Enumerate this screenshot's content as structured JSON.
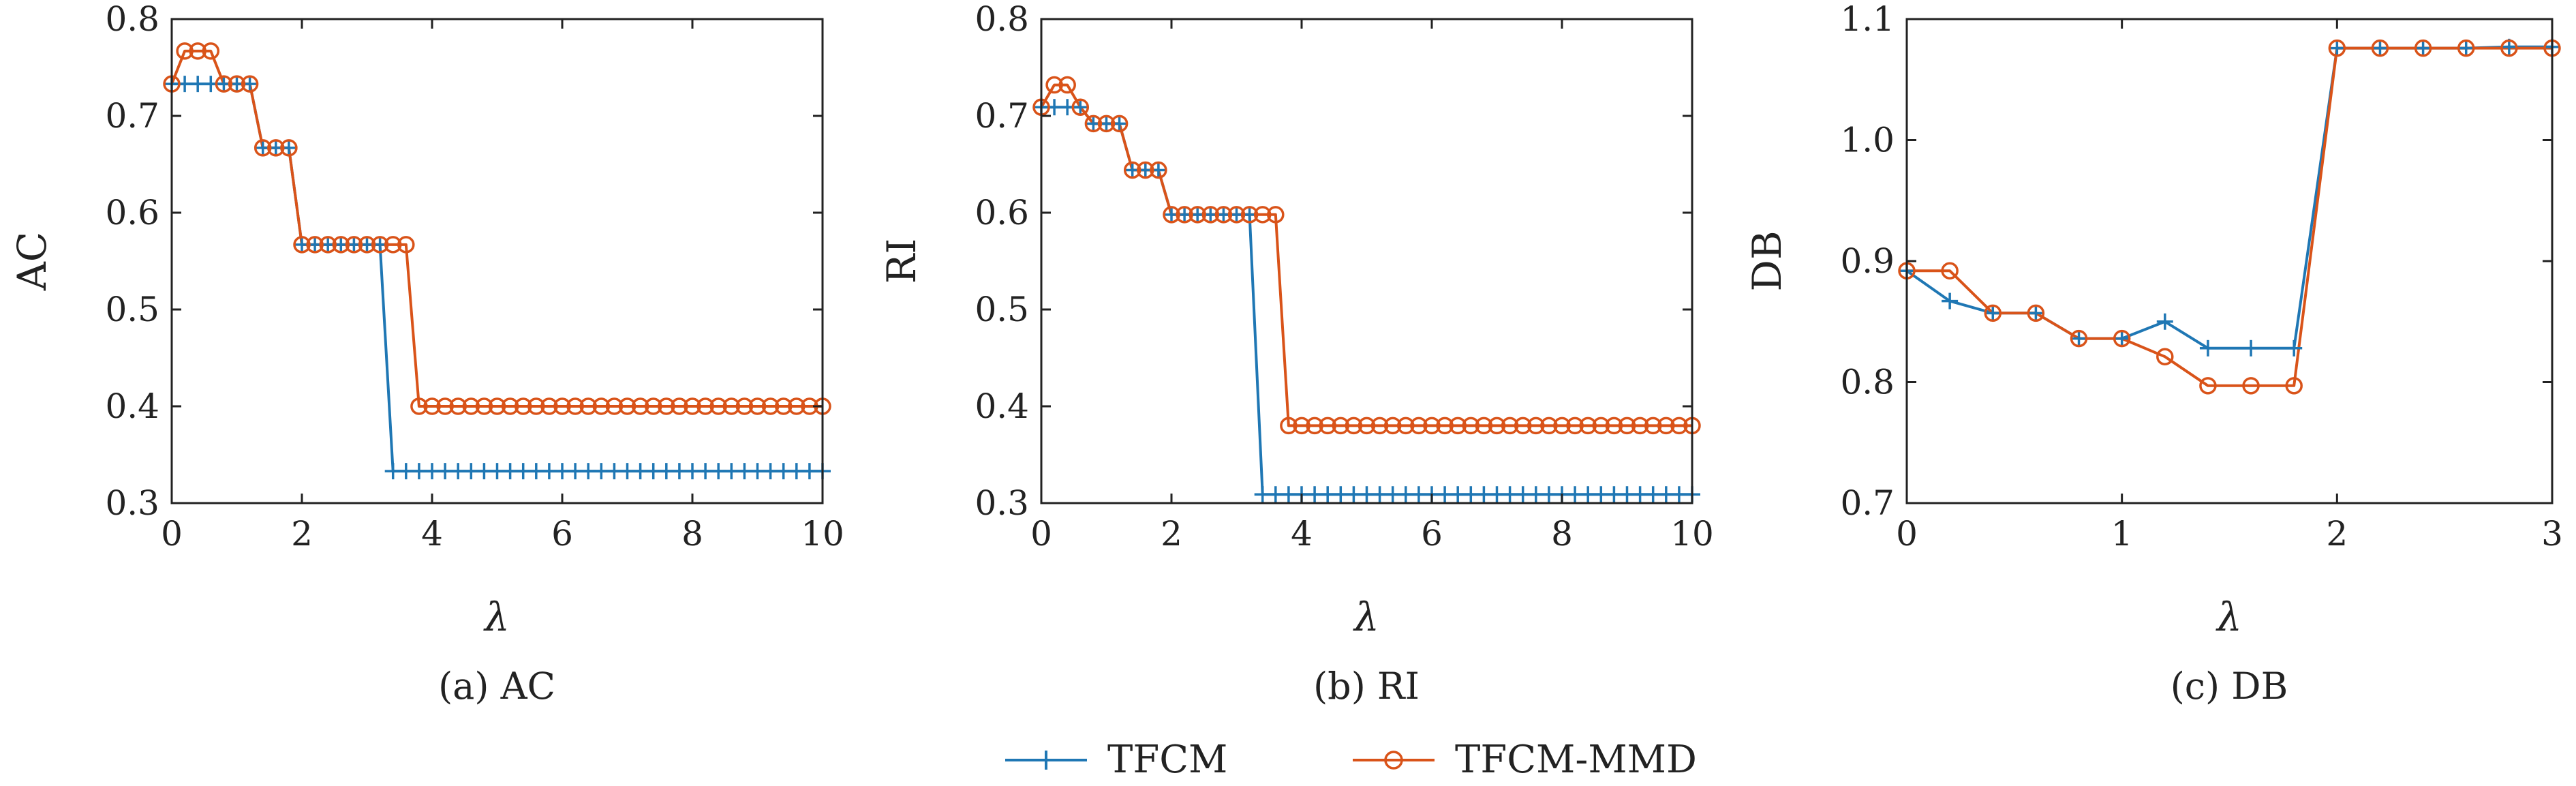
{
  "colors": {
    "tfcm": "#1f77b4",
    "tfcm_mmd": "#d95319",
    "axis": "#222222"
  },
  "legend": {
    "placement": "bottom-center",
    "items": [
      {
        "label": "TFCM",
        "marker": "plus"
      },
      {
        "label": "TFCM-MMD",
        "marker": "circle"
      }
    ]
  },
  "chart_data": [
    {
      "type": "line",
      "caption": "(a) AC",
      "xlabel": "λ",
      "ylabel": "AC",
      "xlim": [
        0,
        10
      ],
      "ylim": [
        0.3,
        0.8
      ],
      "xticks": [
        0,
        2,
        4,
        6,
        8,
        10
      ],
      "xtick_labels": [
        "0",
        "2",
        "4",
        "6",
        "8",
        "10"
      ],
      "yticks": [
        0.3,
        0.4,
        0.5,
        0.6,
        0.7,
        0.8
      ],
      "ytick_labels": [
        "0.3",
        "0.4",
        "0.5",
        "0.6",
        "0.7",
        "0.8"
      ],
      "grid": false,
      "x": [
        0,
        0.2,
        0.4,
        0.6,
        0.8,
        1.0,
        1.2,
        1.4,
        1.6,
        1.8,
        2.0,
        2.2,
        2.4,
        2.6,
        2.8,
        3.0,
        3.2,
        3.4,
        3.6,
        3.8,
        4.0,
        4.2,
        4.4,
        4.6,
        4.8,
        5.0,
        5.2,
        5.4,
        5.6,
        5.8,
        6.0,
        6.2,
        6.4,
        6.6,
        6.8,
        7.0,
        7.2,
        7.4,
        7.6,
        7.8,
        8.0,
        8.2,
        8.4,
        8.6,
        8.8,
        9.0,
        9.2,
        9.4,
        9.6,
        9.8,
        10.0
      ],
      "series": [
        {
          "name": "TFCM",
          "values": [
            0.733,
            0.733,
            0.733,
            0.733,
            0.733,
            0.733,
            0.733,
            0.667,
            0.667,
            0.667,
            0.567,
            0.567,
            0.567,
            0.567,
            0.567,
            0.567,
            0.567,
            0.333,
            0.333,
            0.333,
            0.333,
            0.333,
            0.333,
            0.333,
            0.333,
            0.333,
            0.333,
            0.333,
            0.333,
            0.333,
            0.333,
            0.333,
            0.333,
            0.333,
            0.333,
            0.333,
            0.333,
            0.333,
            0.333,
            0.333,
            0.333,
            0.333,
            0.333,
            0.333,
            0.333,
            0.333,
            0.333,
            0.333,
            0.333,
            0.333,
            0.333
          ]
        },
        {
          "name": "TFCM-MMD",
          "values": [
            0.733,
            0.767,
            0.767,
            0.767,
            0.733,
            0.733,
            0.733,
            0.667,
            0.667,
            0.667,
            0.567,
            0.567,
            0.567,
            0.567,
            0.567,
            0.567,
            0.567,
            0.567,
            0.567,
            0.4,
            0.4,
            0.4,
            0.4,
            0.4,
            0.4,
            0.4,
            0.4,
            0.4,
            0.4,
            0.4,
            0.4,
            0.4,
            0.4,
            0.4,
            0.4,
            0.4,
            0.4,
            0.4,
            0.4,
            0.4,
            0.4,
            0.4,
            0.4,
            0.4,
            0.4,
            0.4,
            0.4,
            0.4,
            0.4,
            0.4,
            0.4
          ]
        }
      ]
    },
    {
      "type": "line",
      "caption": "(b) RI",
      "xlabel": "λ",
      "ylabel": "RI",
      "xlim": [
        0,
        10
      ],
      "ylim": [
        0.3,
        0.8
      ],
      "xticks": [
        0,
        2,
        4,
        6,
        8,
        10
      ],
      "xtick_labels": [
        "0",
        "2",
        "4",
        "6",
        "8",
        "10"
      ],
      "yticks": [
        0.3,
        0.4,
        0.5,
        0.6,
        0.7,
        0.8
      ],
      "ytick_labels": [
        "0.3",
        "0.4",
        "0.5",
        "0.6",
        "0.7",
        "0.8"
      ],
      "grid": false,
      "x": [
        0,
        0.2,
        0.4,
        0.6,
        0.8,
        1.0,
        1.2,
        1.4,
        1.6,
        1.8,
        2.0,
        2.2,
        2.4,
        2.6,
        2.8,
        3.0,
        3.2,
        3.4,
        3.6,
        3.8,
        4.0,
        4.2,
        4.4,
        4.6,
        4.8,
        5.0,
        5.2,
        5.4,
        5.6,
        5.8,
        6.0,
        6.2,
        6.4,
        6.6,
        6.8,
        7.0,
        7.2,
        7.4,
        7.6,
        7.8,
        8.0,
        8.2,
        8.4,
        8.6,
        8.8,
        9.0,
        9.2,
        9.4,
        9.6,
        9.8,
        10.0
      ],
      "series": [
        {
          "name": "TFCM",
          "values": [
            0.709,
            0.709,
            0.709,
            0.709,
            0.692,
            0.692,
            0.692,
            0.644,
            0.644,
            0.644,
            0.598,
            0.598,
            0.598,
            0.598,
            0.598,
            0.598,
            0.598,
            0.309,
            0.309,
            0.309,
            0.309,
            0.309,
            0.309,
            0.309,
            0.309,
            0.309,
            0.309,
            0.309,
            0.309,
            0.309,
            0.309,
            0.309,
            0.309,
            0.309,
            0.309,
            0.309,
            0.309,
            0.309,
            0.309,
            0.309,
            0.309,
            0.309,
            0.309,
            0.309,
            0.309,
            0.309,
            0.309,
            0.309,
            0.309,
            0.309,
            0.309
          ]
        },
        {
          "name": "TFCM-MMD",
          "values": [
            0.709,
            0.732,
            0.732,
            0.709,
            0.692,
            0.692,
            0.692,
            0.644,
            0.644,
            0.644,
            0.598,
            0.598,
            0.598,
            0.598,
            0.598,
            0.598,
            0.598,
            0.598,
            0.598,
            0.38,
            0.38,
            0.38,
            0.38,
            0.38,
            0.38,
            0.38,
            0.38,
            0.38,
            0.38,
            0.38,
            0.38,
            0.38,
            0.38,
            0.38,
            0.38,
            0.38,
            0.38,
            0.38,
            0.38,
            0.38,
            0.38,
            0.38,
            0.38,
            0.38,
            0.38,
            0.38,
            0.38,
            0.38,
            0.38,
            0.38,
            0.38
          ]
        }
      ]
    },
    {
      "type": "line",
      "caption": "(c) DB",
      "xlabel": "λ",
      "ylabel": "DB",
      "xlim": [
        0,
        3
      ],
      "ylim": [
        0.7,
        1.1
      ],
      "xticks": [
        0,
        1,
        2,
        3
      ],
      "xtick_labels": [
        "0",
        "1",
        "2",
        "3"
      ],
      "yticks": [
        0.7,
        0.8,
        0.9,
        1.0,
        1.1
      ],
      "ytick_labels": [
        "0.7",
        "0.8",
        "0.9",
        "1.0",
        "1.1"
      ],
      "grid": false,
      "x": [
        0,
        0.2,
        0.4,
        0.6,
        0.8,
        1.0,
        1.2,
        1.4,
        1.6,
        1.8,
        2.0,
        2.2,
        2.4,
        2.6,
        2.8,
        3.0
      ],
      "series": [
        {
          "name": "TFCM",
          "values": [
            0.892,
            0.867,
            0.857,
            0.857,
            0.836,
            0.836,
            0.85,
            0.828,
            0.828,
            0.828,
            1.076,
            1.076,
            1.076,
            1.076,
            1.077,
            1.077
          ]
        },
        {
          "name": "TFCM-MMD",
          "values": [
            0.892,
            0.892,
            0.857,
            0.857,
            0.836,
            0.836,
            0.821,
            0.797,
            0.797,
            0.797,
            1.076,
            1.076,
            1.076,
            1.076,
            1.076,
            1.076
          ]
        }
      ]
    }
  ]
}
